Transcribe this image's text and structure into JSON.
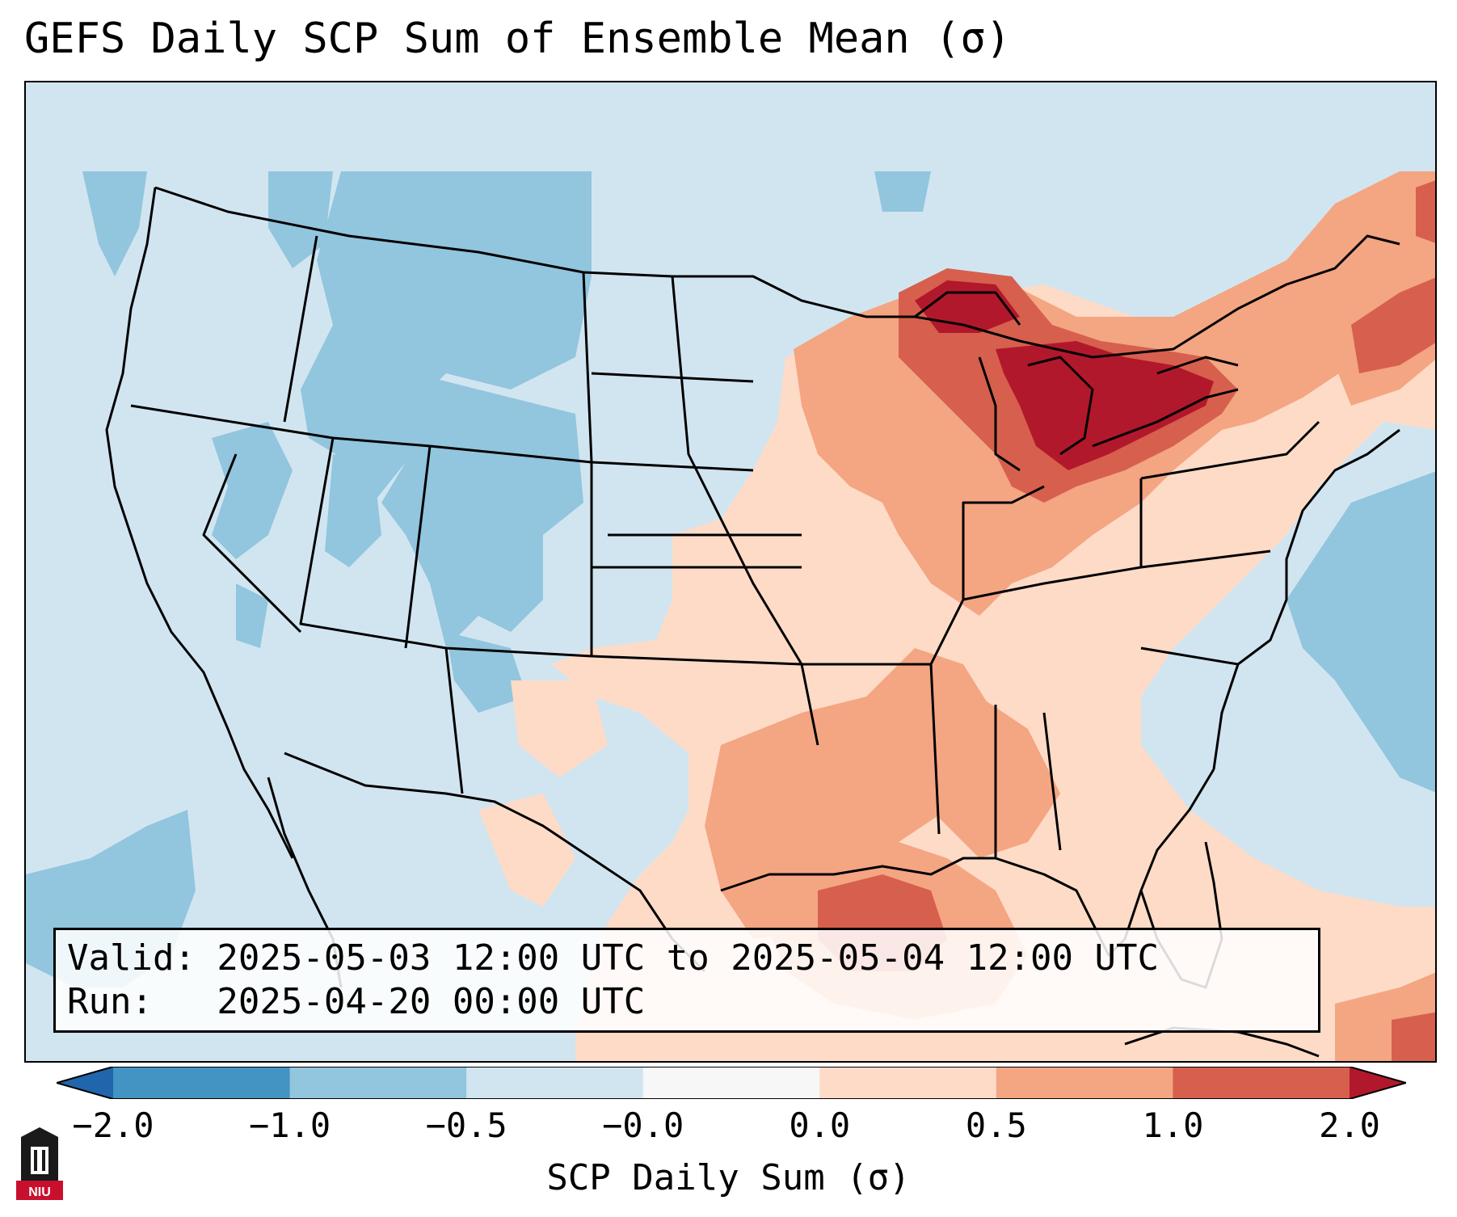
{
  "title": "GEFS Daily SCP Sum of Ensemble Mean (σ)",
  "info": {
    "valid_line": "Valid: 2025-05-03 12:00 UTC to 2025-05-04 12:00 UTC",
    "run_line": "Run:   2025-04-20 00:00 UTC"
  },
  "colorbar": {
    "label": "SCP Daily Sum (σ)",
    "ticks": [
      "−2.0",
      "−1.0",
      "−0.5",
      "−0.0",
      "0.0",
      "0.5",
      "1.0",
      "2.0"
    ],
    "colors": [
      "#4393c3",
      "#92c5de",
      "#d1e5f0",
      "#f7f7f7",
      "#fddbc7",
      "#f4a582",
      "#d6604d",
      "#b2182b"
    ],
    "extend": "both"
  },
  "logo": {
    "text": "NIU"
  },
  "colors": {
    "strong_negative": "#4393c3",
    "negative": "#92c5de",
    "weak_negative": "#d1e5f0",
    "weak_positive": "#fddbc7",
    "positive": "#f4a582",
    "strong_positive": "#d6604d",
    "very_strong_positive": "#b2182b"
  }
}
